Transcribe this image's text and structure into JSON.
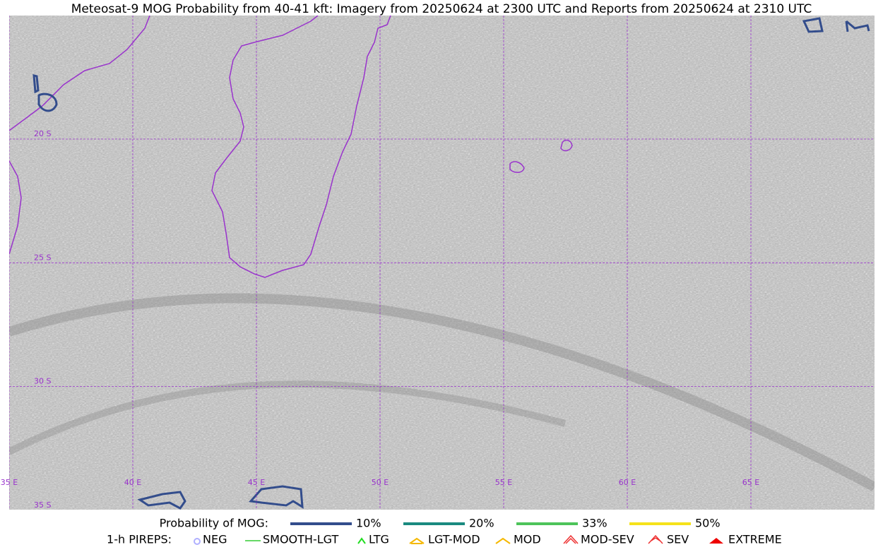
{
  "title": "Meteosat-9 MOG Probability from 40-41 kft: Imagery from 20250624 at 2300 UTC and Reports from 20250624 at 2310 UTC",
  "map": {
    "lat_labels": [
      "20 S",
      "25 S",
      "30 S",
      "35 S"
    ],
    "lon_labels": [
      "35 E",
      "40 E",
      "45 E",
      "50 E",
      "55 E",
      "60 E",
      "65 E"
    ]
  },
  "legend": {
    "probability_title": "Probability of MOG:",
    "probability_items": [
      {
        "label": "10%",
        "color": "#334d8c"
      },
      {
        "label": "20%",
        "color": "#1a8a80"
      },
      {
        "label": "33%",
        "color": "#4dc45a"
      },
      {
        "label": "50%",
        "color": "#f5e21a"
      }
    ],
    "pirep_title": "1-h PIREPS:",
    "pirep_items": [
      "NEG",
      "SMOOTH-LGT",
      "LTG",
      "LGT-MOD",
      "MOD",
      "MOD-SEV",
      "SEV",
      "EXTREME"
    ]
  }
}
